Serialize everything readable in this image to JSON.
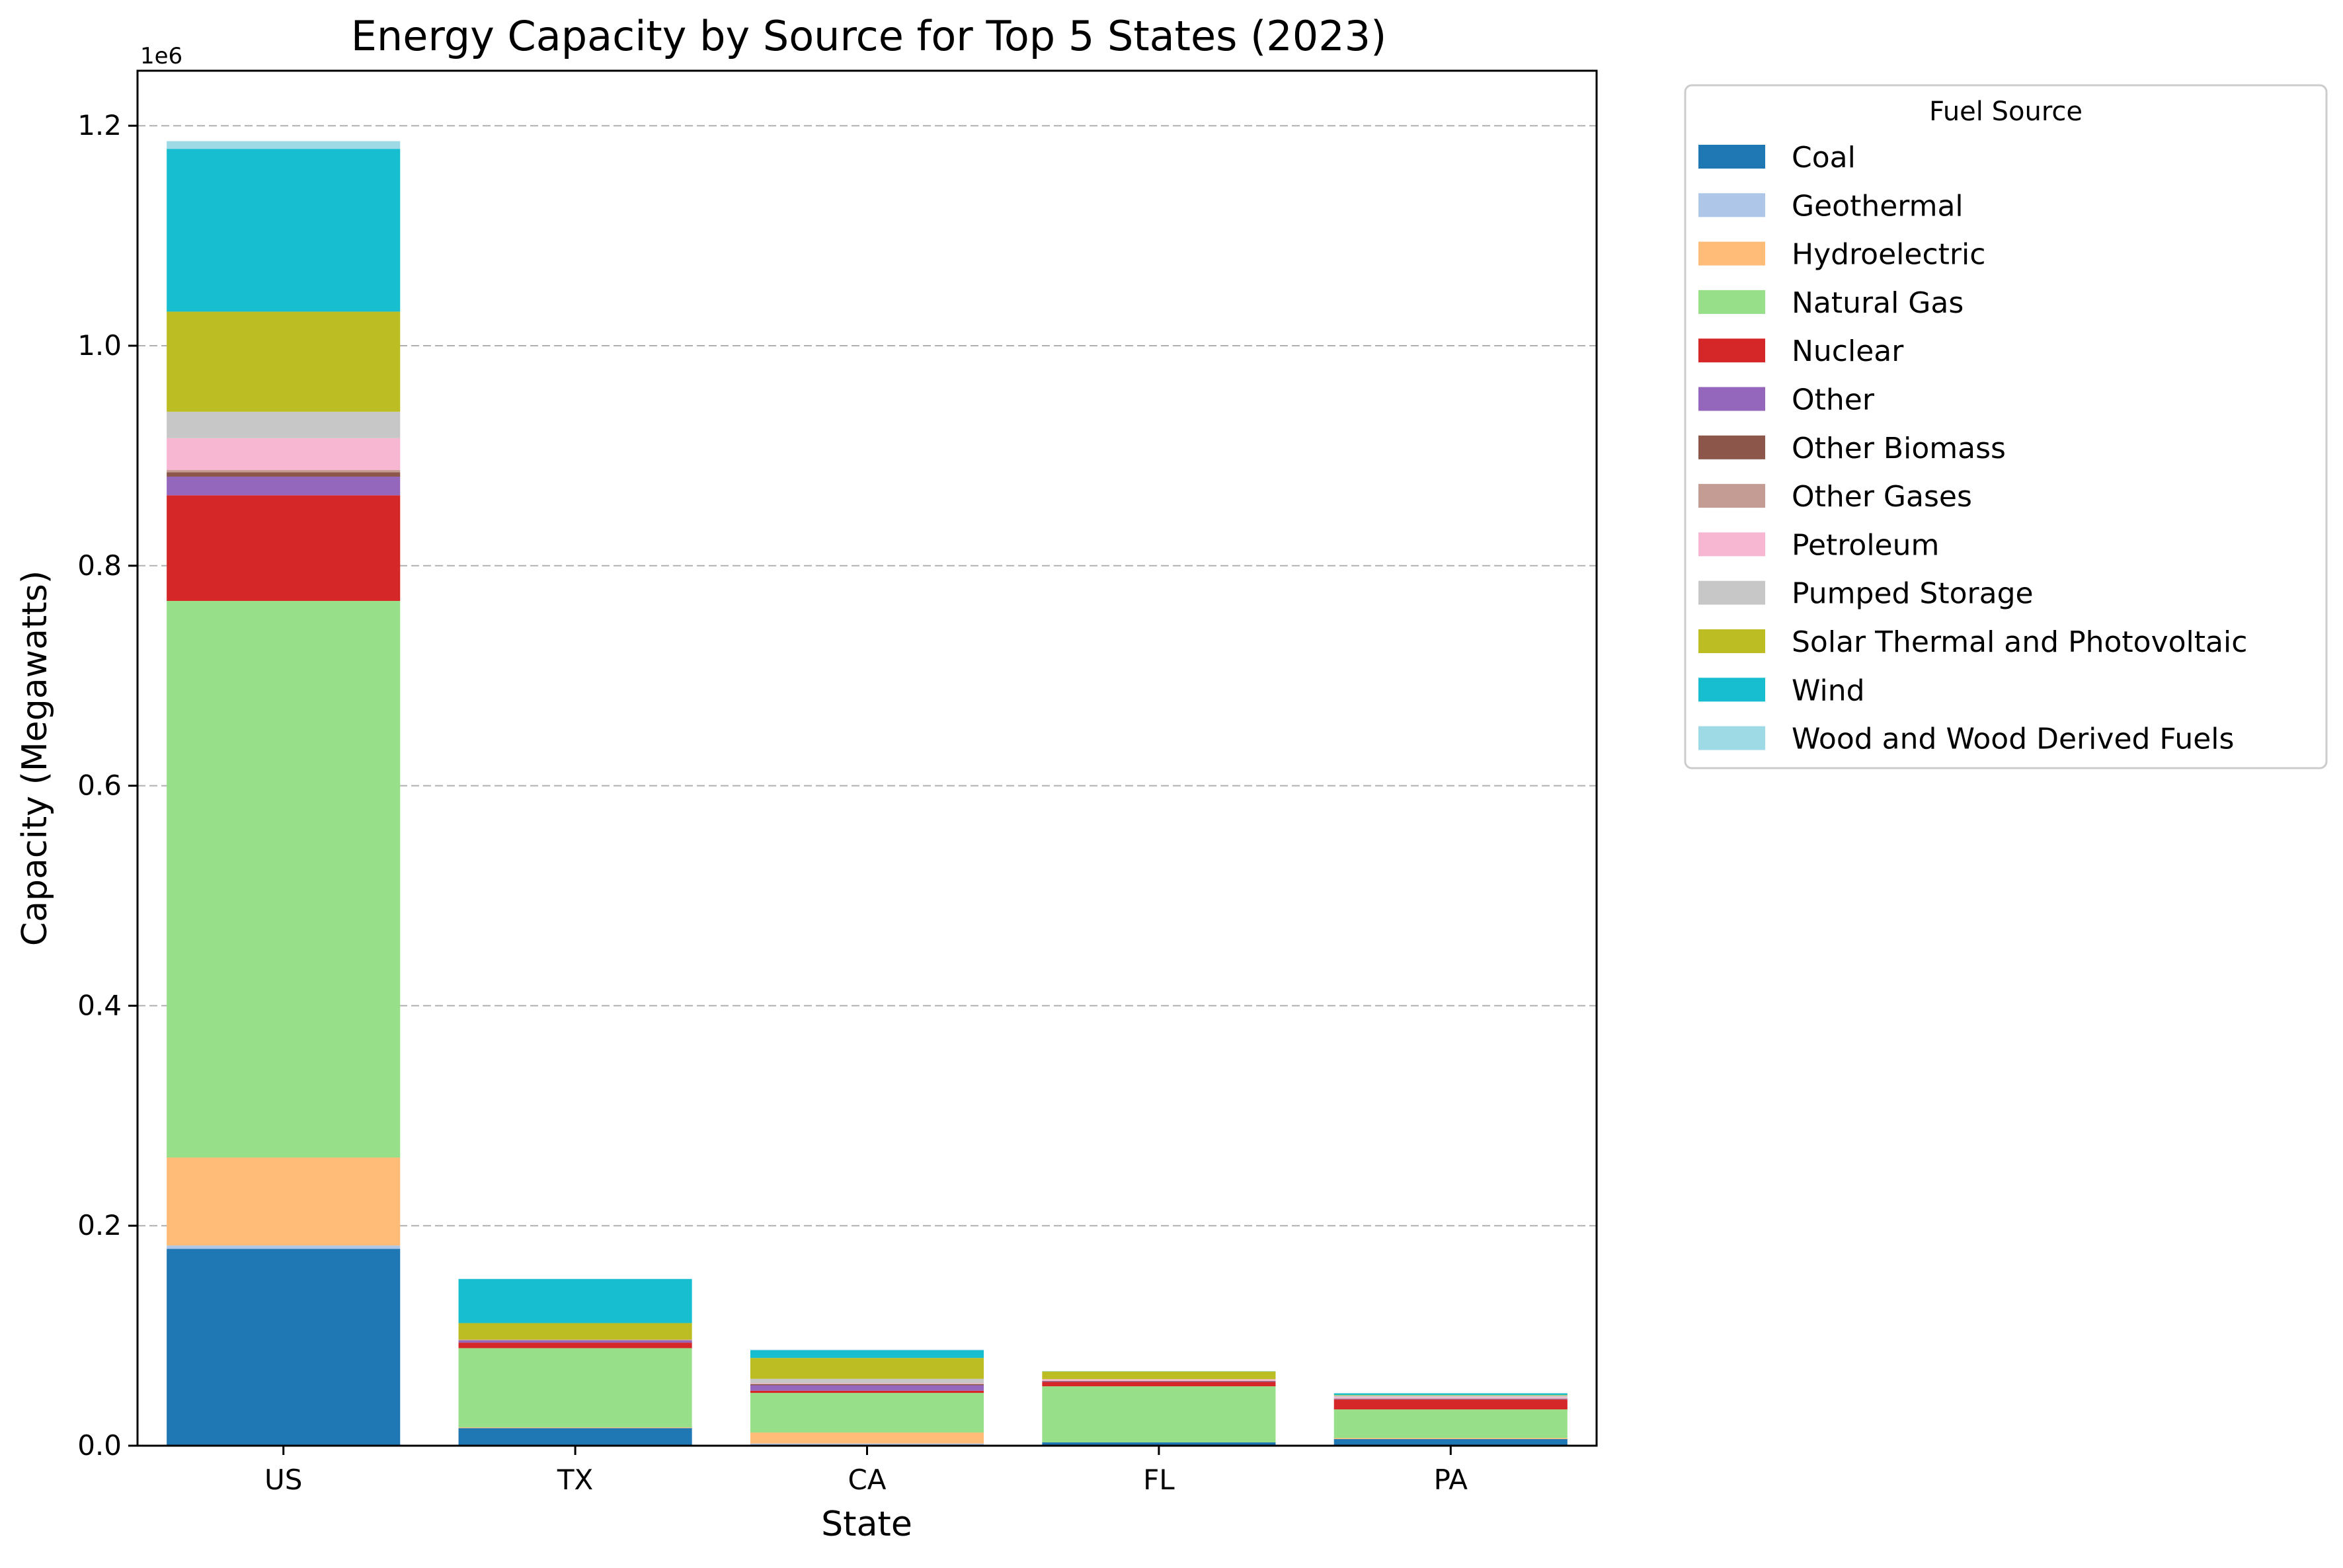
{
  "chart_data": {
    "type": "bar",
    "stacked": true,
    "title": "Energy Capacity by Source for Top 5 States (2023)",
    "xlabel": "State",
    "ylabel": "Capacity (Megawatts)",
    "y_offset_label": "1e6",
    "ylim": [
      0,
      1250000
    ],
    "yticks": [
      0,
      200000,
      400000,
      600000,
      800000,
      1000000,
      1200000
    ],
    "ytick_labels": [
      "0.0",
      "0.2",
      "0.4",
      "0.6",
      "0.8",
      "1.0",
      "1.2"
    ],
    "grid": "horizontal dashed",
    "legend_title": "Fuel Source",
    "legend_position": "outside right, top",
    "categories": [
      "US",
      "TX",
      "CA",
      "FL",
      "PA"
    ],
    "series": [
      {
        "name": "Coal",
        "color": "#1f77b4",
        "values": [
          179000,
          16000,
          0,
          3000,
          6000
        ]
      },
      {
        "name": "Geothermal",
        "color": "#aec7e8",
        "values": [
          3000,
          0,
          2000,
          0,
          0
        ]
      },
      {
        "name": "Hydroelectric",
        "color": "#ffbb78",
        "values": [
          80000,
          700,
          10000,
          0,
          1000
        ]
      },
      {
        "name": "Natural Gas",
        "color": "#98df8a",
        "values": [
          506000,
          72000,
          36000,
          51000,
          26000
        ]
      },
      {
        "name": "Nuclear",
        "color": "#d62728",
        "values": [
          96000,
          5000,
          2000,
          4000,
          9000
        ]
      },
      {
        "name": "Other",
        "color": "#9467bd",
        "values": [
          17000,
          2000,
          5000,
          500,
          500
        ]
      },
      {
        "name": "Other Biomass",
        "color": "#8c564b",
        "values": [
          4000,
          200,
          1000,
          400,
          300
        ]
      },
      {
        "name": "Other Gases",
        "color": "#c49c94",
        "values": [
          2000,
          500,
          300,
          100,
          300
        ]
      },
      {
        "name": "Petroleum",
        "color": "#f7b6d2",
        "values": [
          29000,
          100,
          500,
          1500,
          1000
        ]
      },
      {
        "name": "Pumped Storage",
        "color": "#c7c7c7",
        "values": [
          24000,
          0,
          4000,
          0,
          1500
        ]
      },
      {
        "name": "Solar Thermal and Photovoltaic",
        "color": "#bcbd22",
        "values": [
          91000,
          15000,
          19000,
          7000,
          500
        ]
      },
      {
        "name": "Wind",
        "color": "#17becf",
        "values": [
          148000,
          40000,
          7000,
          0,
          1500
        ]
      },
      {
        "name": "Wood and Wood Derived Fuels",
        "color": "#9edae5",
        "values": [
          7000,
          300,
          500,
          400,
          300
        ]
      }
    ]
  }
}
